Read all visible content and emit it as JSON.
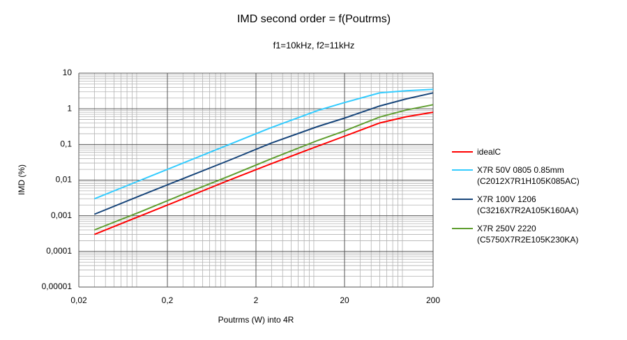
{
  "chart_data": {
    "type": "line",
    "title": "IMD second order = f(Poutrms)",
    "subtitle": "f1=10kHz, f2=11kHz",
    "x_label": "Poutrms (W) into 4R",
    "y_label": "IMD (%)",
    "x_scale": "log",
    "y_scale": "log",
    "grid": true,
    "minor_grid": true,
    "legend": "right",
    "xlim": [
      0.02,
      200
    ],
    "xticks": [
      {
        "value": 0.02,
        "label": "0,02"
      },
      {
        "value": 0.2,
        "label": "0,2"
      },
      2,
      20,
      200
    ],
    "ylim": [
      1e-05,
      10
    ],
    "yticks": [
      {
        "value": 1e-05,
        "label": "0,00001"
      },
      {
        "value": 0.0001,
        "label": "0,0001"
      },
      {
        "value": 0.001,
        "label": "0,001"
      },
      {
        "value": 0.01,
        "label": "0,01"
      },
      {
        "value": 0.1,
        "label": "0,1"
      },
      1,
      10
    ],
    "x": [
      0.03,
      0.1,
      0.3,
      1,
      3,
      10,
      20,
      50,
      100,
      200
    ],
    "series": [
      {
        "name": "idealC",
        "color": "#ff0000",
        "values": [
          0.0003,
          0.001,
          0.003,
          0.01,
          0.029,
          0.09,
          0.17,
          0.4,
          0.6,
          0.8
        ]
      },
      {
        "name": "X7R 50V 0805 0.85mm\n(C2012X7R1H105K085AC)",
        "color": "#33ccff",
        "values": [
          0.003,
          0.01,
          0.03,
          0.1,
          0.3,
          0.9,
          1.5,
          2.8,
          3.2,
          3.5
        ]
      },
      {
        "name": "X7R 100V 1206\n(C3216X7R2A105K160AA)",
        "color": "#17457a",
        "values": [
          0.0011,
          0.0037,
          0.011,
          0.036,
          0.11,
          0.32,
          0.55,
          1.2,
          1.9,
          2.8
        ]
      },
      {
        "name": "X7R 250V 2220\n(C5750X7R2E105K230KA)",
        "color": "#5f9e2f",
        "values": [
          0.0004,
          0.0013,
          0.004,
          0.013,
          0.04,
          0.13,
          0.24,
          0.59,
          0.93,
          1.3
        ]
      }
    ]
  }
}
